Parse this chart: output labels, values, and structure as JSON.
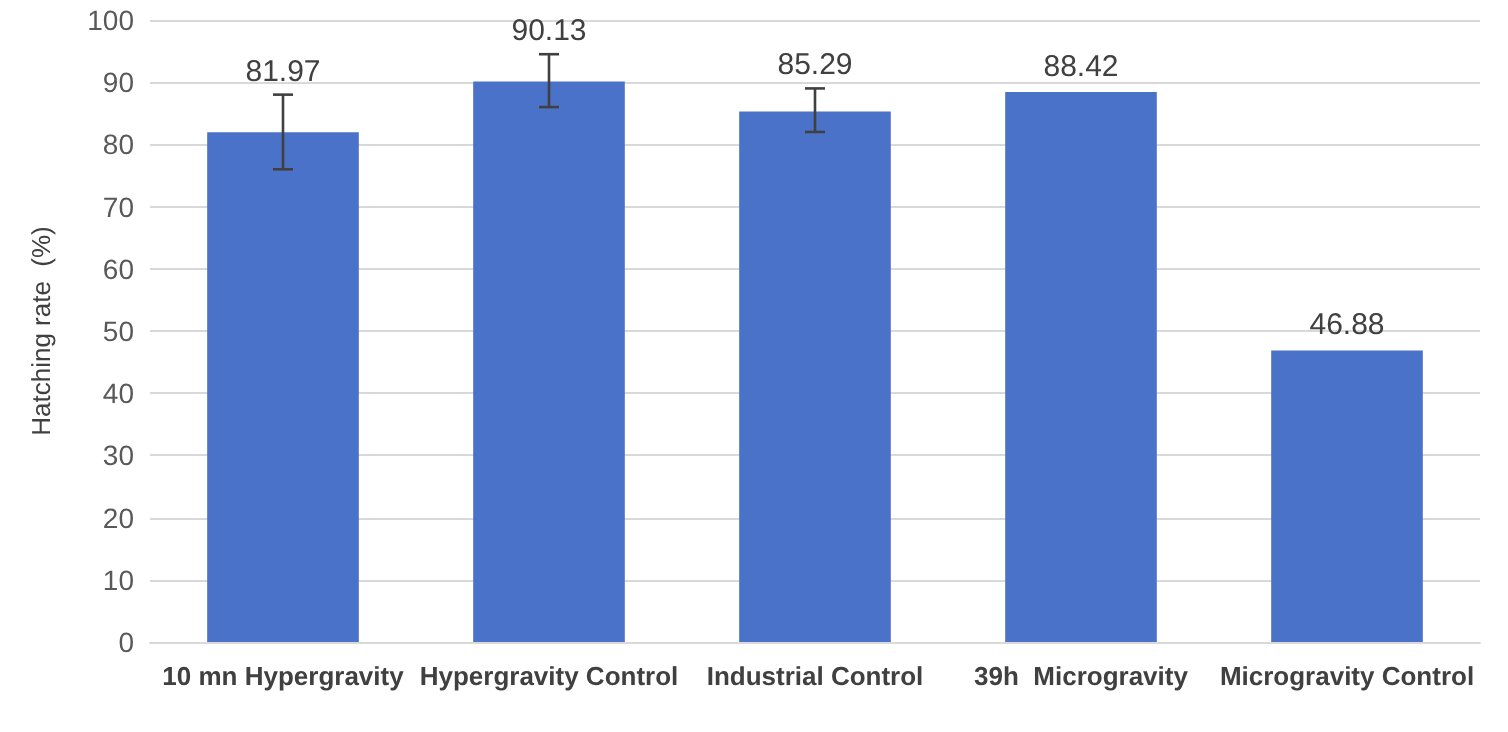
{
  "chart_data": {
    "type": "bar",
    "ylabel": "Hatching rate  (%)",
    "categories": [
      "10 mn Hypergravity",
      "Hypergravity Control",
      "Industrial Control",
      "39h  Microgravity",
      "Microgravity Control"
    ],
    "values": [
      81.97,
      90.13,
      85.29,
      88.42,
      46.88
    ],
    "errors": [
      [
        76,
        88
      ],
      [
        86,
        94.5
      ],
      [
        82,
        89
      ],
      null,
      null
    ],
    "color": "#4a72c8",
    "ylim": [
      0,
      100
    ],
    "yticks": [
      0,
      10,
      20,
      30,
      40,
      50,
      60,
      70,
      80,
      90,
      100
    ],
    "grid": "y",
    "data_labels": true
  }
}
